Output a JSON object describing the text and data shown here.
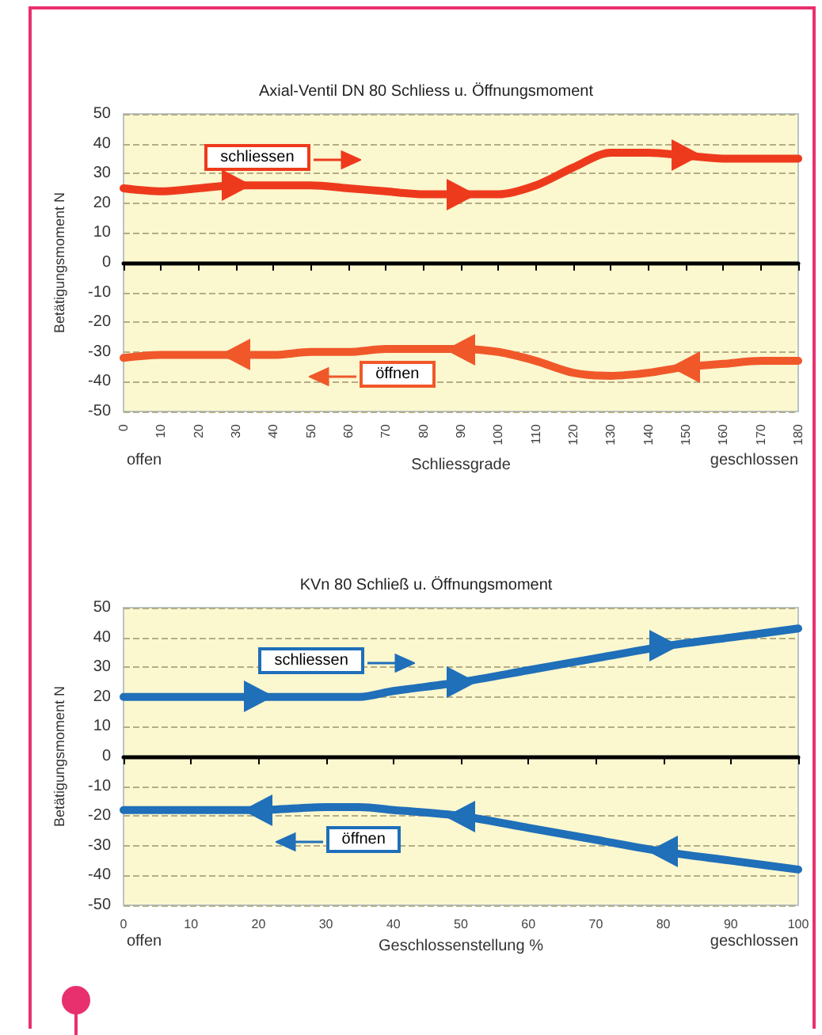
{
  "chart_data": [
    {
      "type": "line",
      "title": "Axial-Ventil DN 80 Schliess u. Öffnungsmoment",
      "xlabel": "Schliessgrade",
      "ylabel": "Betätigungsmoment N",
      "x": [
        0,
        10,
        20,
        30,
        40,
        50,
        60,
        70,
        80,
        90,
        100,
        110,
        120,
        130,
        140,
        150,
        160,
        170,
        180
      ],
      "series": [
        {
          "name": "schliessen",
          "color": "#ee3a1c",
          "values": [
            25,
            24,
            25,
            26,
            26,
            26,
            25,
            24,
            23,
            23,
            23,
            26,
            32,
            37,
            37,
            36,
            35,
            35,
            35
          ]
        },
        {
          "name": "öffnen",
          "color": "#f0582a",
          "values": [
            -32,
            -31,
            -31,
            -31,
            -31,
            -30,
            -30,
            -29,
            -29,
            -29,
            -30,
            -33,
            -37,
            -38,
            -37,
            -35,
            -34,
            -33,
            -33
          ]
        }
      ],
      "xlim": [
        0,
        180
      ],
      "xticks": [
        0,
        10,
        20,
        30,
        40,
        50,
        60,
        70,
        80,
        90,
        100,
        110,
        120,
        130,
        140,
        150,
        160,
        170,
        180
      ],
      "ylim": [
        -50,
        50
      ],
      "yticks": [
        -50,
        -40,
        -30,
        -20,
        -10,
        0,
        10,
        20,
        30,
        40,
        50
      ],
      "grid": "y",
      "legend": "left",
      "marker": "none",
      "line_style": "solid",
      "annotations": [
        "offen",
        "geschlossen"
      ]
    },
    {
      "type": "line",
      "title": "KVn 80 Schließ u. Öffnungsmoment",
      "xlabel": "Geschlossenstellung %",
      "ylabel": "Betätigungsmoment N",
      "x": [
        0,
        10,
        20,
        30,
        35,
        40,
        50,
        60,
        70,
        80,
        90,
        100
      ],
      "series": [
        {
          "name": "schliessen",
          "color": "#1f6fb9",
          "values": [
            20,
            20,
            20,
            20,
            20,
            22,
            25,
            29,
            33,
            37,
            40,
            43
          ]
        },
        {
          "name": "öffnen",
          "color": "#1f6fb9",
          "values": [
            -18,
            -18,
            -18,
            -17,
            -17,
            -18,
            -20,
            -24,
            -28,
            -32,
            -35,
            -38
          ]
        }
      ],
      "xlim": [
        0,
        100
      ],
      "xticks": [
        0,
        10,
        20,
        30,
        40,
        50,
        60,
        70,
        80,
        90,
        100
      ],
      "ylim": [
        -50,
        50
      ],
      "yticks": [
        -50,
        -40,
        -30,
        -20,
        -10,
        0,
        10,
        20,
        30,
        40,
        50
      ],
      "grid": "y",
      "legend": "left",
      "marker": "none",
      "line_style": "solid",
      "annotations": [
        "offen",
        "geschlossen"
      ]
    }
  ]
}
